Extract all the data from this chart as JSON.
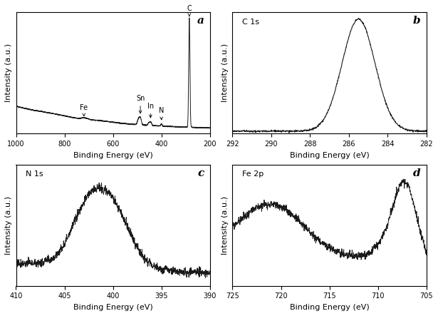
{
  "panel_a": {
    "title": "a",
    "xlabel": "Binding Energy (eV)",
    "ylabel": "Intensity (a.u.)",
    "xlim": [
      1000,
      200
    ],
    "xticks": [
      1000,
      800,
      600,
      400,
      200
    ]
  },
  "panel_b": {
    "title": "b",
    "label": "C 1s",
    "xlabel": "Binding Energy (eV)",
    "ylabel": "Intensity (a.u.)",
    "xlim": [
      292,
      282
    ],
    "xticks": [
      292,
      290,
      288,
      286,
      284,
      282
    ]
  },
  "panel_c": {
    "title": "c",
    "label": "N 1s",
    "xlabel": "Binding Energy (eV)",
    "ylabel": "Intensity (a.u.)",
    "xlim": [
      410,
      390
    ],
    "xticks": [
      410,
      405,
      400,
      395,
      390
    ]
  },
  "panel_d": {
    "title": "d",
    "label": "Fe 2p",
    "xlabel": "Binding Energy (eV)",
    "ylabel": "Intensity (a.u.)",
    "xlim": [
      725,
      705
    ],
    "xticks": [
      725,
      720,
      715,
      710,
      705
    ]
  },
  "line_color": "#1a1a1a",
  "bg_color": "#ffffff",
  "tick_fontsize": 7,
  "label_fontsize": 8,
  "panel_label_fontsize": 11
}
